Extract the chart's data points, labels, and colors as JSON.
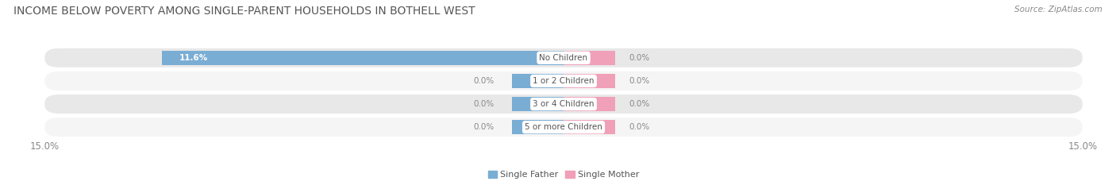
{
  "title": "INCOME BELOW POVERTY AMONG SINGLE-PARENT HOUSEHOLDS IN BOTHELL WEST",
  "source": "Source: ZipAtlas.com",
  "categories": [
    "No Children",
    "1 or 2 Children",
    "3 or 4 Children",
    "5 or more Children"
  ],
  "single_father_values": [
    11.6,
    0.0,
    0.0,
    0.0
  ],
  "single_mother_values": [
    0.0,
    0.0,
    0.0,
    0.0
  ],
  "x_max": 15.0,
  "x_min": -15.0,
  "father_color": "#7aadd4",
  "mother_color": "#f0a0b8",
  "father_label": "Single Father",
  "mother_label": "Single Mother",
  "row_bg_light": "#ebebeb",
  "row_bg_dark": "#e0e0e0",
  "title_fontsize": 10,
  "axis_label_fontsize": 8.5,
  "category_fontsize": 7.5,
  "value_fontsize": 7.5,
  "legend_fontsize": 8,
  "source_fontsize": 7.5,
  "title_color": "#555555",
  "axis_label_color": "#888888",
  "value_color_on_bar": "#ffffff",
  "value_color_outside": "#888888",
  "category_color": "#555555"
}
